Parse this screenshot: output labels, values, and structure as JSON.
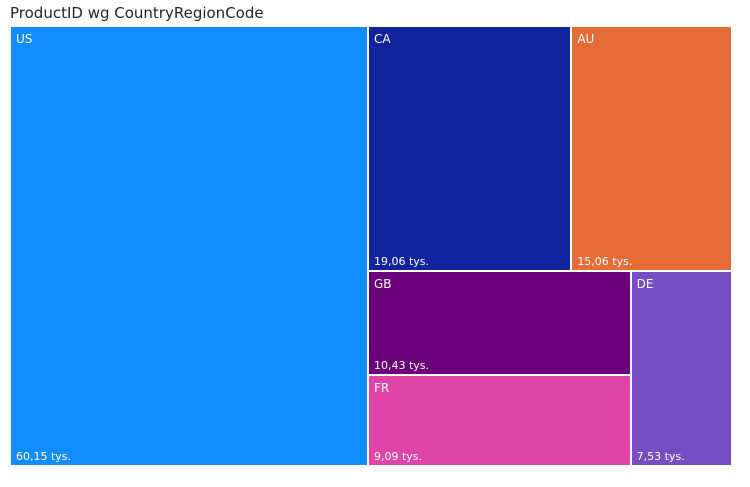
{
  "chart_data": {
    "type": "treemap",
    "title": "ProductID wg CountryRegionCode",
    "categories": [
      "US",
      "CA",
      "AU",
      "GB",
      "FR",
      "DE"
    ],
    "values": [
      60150,
      19060,
      15060,
      10430,
      9090,
      7530
    ],
    "value_labels": [
      "60,15 tys.",
      "19,06 tys.",
      "15,06 tys.",
      "10,43 tys.",
      "9,09 tys.",
      "7,53 tys."
    ],
    "colors": [
      "#118DFF",
      "#12239E",
      "#E66C37",
      "#6B007B",
      "#E044A7",
      "#744EC2"
    ]
  }
}
